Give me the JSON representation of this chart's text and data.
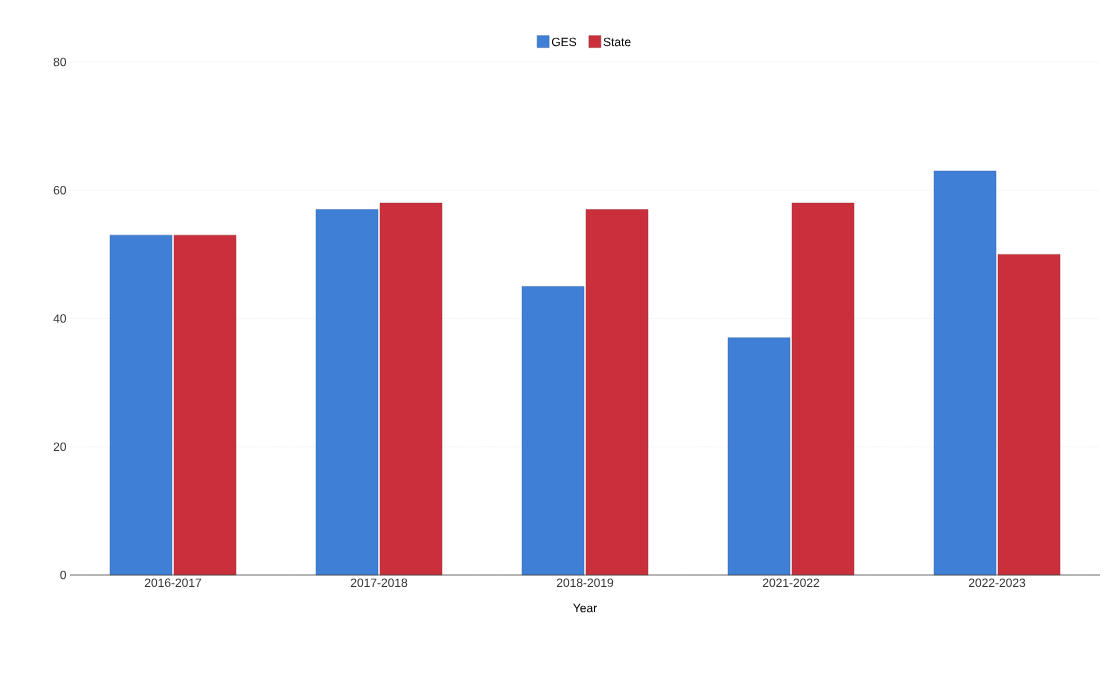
{
  "chart_data": {
    "type": "bar",
    "xlabel": "Year",
    "categories": [
      "2016-2017",
      "2017-2018",
      "2018-2019",
      "2021-2022",
      "2022-2023"
    ],
    "series": [
      {
        "name": "GES",
        "color": "#3f7fd6",
        "values": [
          53,
          57,
          45,
          37,
          63
        ]
      },
      {
        "name": "State",
        "color": "#c9303c",
        "values": [
          53,
          58,
          57,
          58,
          50
        ]
      }
    ],
    "ylim": [
      0,
      80
    ],
    "yticks": [
      0,
      20,
      40,
      60,
      80
    ],
    "grid": "y",
    "legend": "top"
  }
}
